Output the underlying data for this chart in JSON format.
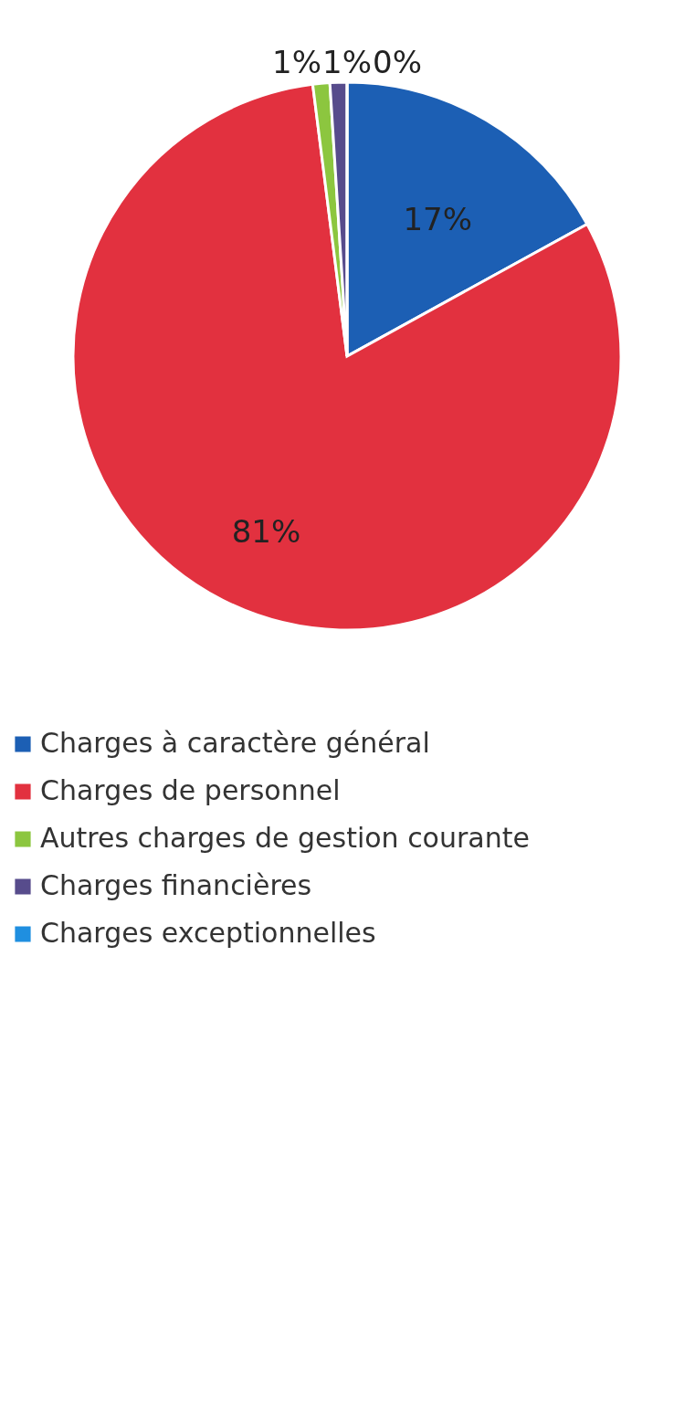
{
  "chart_data": {
    "type": "pie",
    "categories": [
      "Charges à caractère général",
      "Charges de personnel",
      "Autres charges de gestion courante",
      "Charges financières",
      "Charges exceptionnelles"
    ],
    "values": [
      17,
      81,
      1,
      1,
      0
    ],
    "value_labels": [
      "17%",
      "81%",
      "1%",
      "1%",
      "0%"
    ],
    "colors": [
      "#1c5fb4",
      "#e2313f",
      "#8cc63f",
      "#574c8c",
      "#1f8fe0"
    ],
    "legend": "bottom"
  }
}
